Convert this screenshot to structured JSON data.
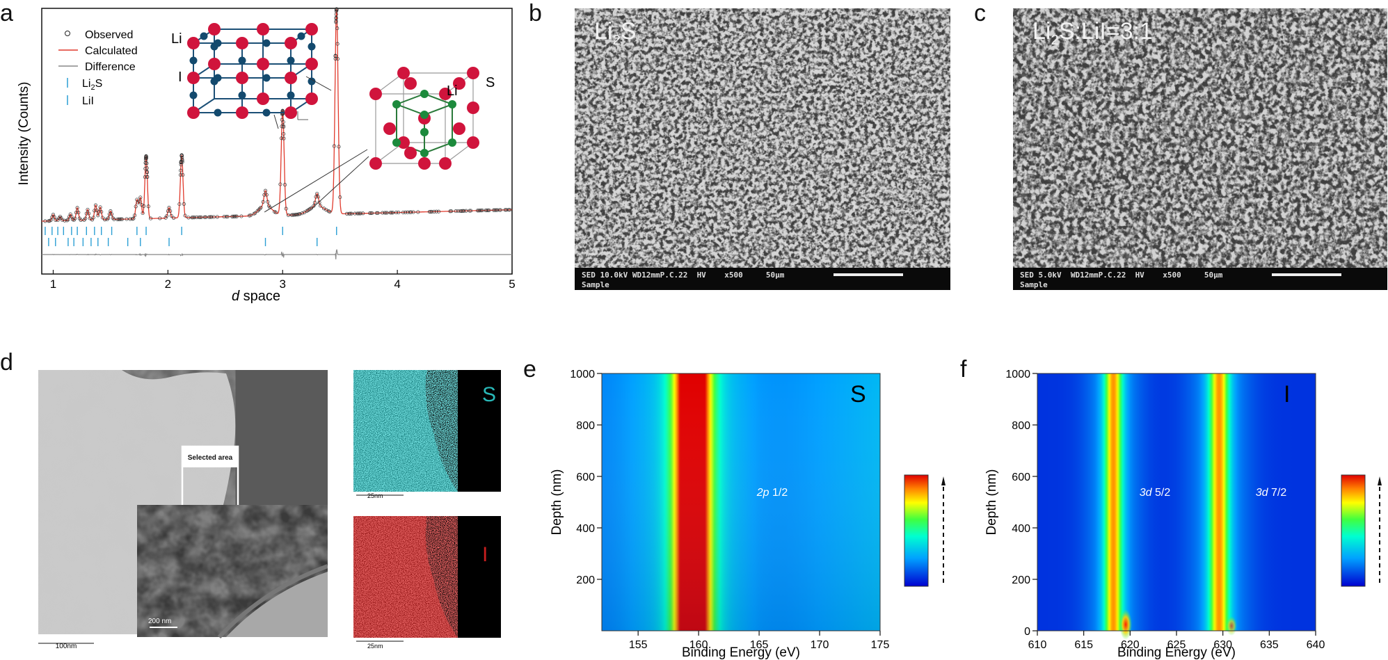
{
  "figure": {
    "panel_labels": [
      "a",
      "b",
      "c",
      "d",
      "e",
      "f"
    ]
  },
  "chart_data": [
    {
      "id": "a",
      "type": "line",
      "xlabel_italic": "d",
      "xlabel_rest": " space",
      "ylabel": "Intensity (Counts)",
      "xlim": [
        0.9,
        5
      ],
      "xticks": [
        1,
        2,
        3,
        4,
        5
      ],
      "legend": [
        "Observed",
        "Calculated",
        "Difference",
        "Li2S",
        "LiI"
      ],
      "legend_position": "top-left",
      "inset_labels": {
        "li_top": "Li",
        "i_left": "I",
        "li_right": "Li",
        "s_right": "S"
      },
      "peaks": [
        {
          "x": 1.0,
          "h": 0.03
        },
        {
          "x": 1.06,
          "h": 0.02
        },
        {
          "x": 1.15,
          "h": 0.03
        },
        {
          "x": 1.21,
          "h": 0.06
        },
        {
          "x": 1.3,
          "h": 0.05
        },
        {
          "x": 1.37,
          "h": 0.07
        },
        {
          "x": 1.41,
          "h": 0.06
        },
        {
          "x": 1.5,
          "h": 0.04
        },
        {
          "x": 1.73,
          "h": 0.09
        },
        {
          "x": 1.76,
          "h": 0.1
        },
        {
          "x": 1.81,
          "h": 0.3
        },
        {
          "x": 2.01,
          "h": 0.05
        },
        {
          "x": 2.12,
          "h": 0.3
        },
        {
          "x": 2.85,
          "h": 0.07
        },
        {
          "x": 3.0,
          "h": 0.5
        },
        {
          "x": 3.3,
          "h": 0.06
        },
        {
          "x": 3.47,
          "h": 0.98
        }
      ],
      "tick_positions_li2s": [
        0.93,
        0.99,
        1.04,
        1.09,
        1.16,
        1.21,
        1.29,
        1.36,
        1.42,
        1.51,
        1.73,
        1.81,
        2.12,
        3.0,
        3.47
      ],
      "tick_positions_lii": [
        0.96,
        1.02,
        1.13,
        1.18,
        1.26,
        1.33,
        1.39,
        1.48,
        1.65,
        1.76,
        2.01,
        2.85,
        3.3
      ]
    },
    {
      "id": "e",
      "type": "heatmap",
      "xlabel": "Binding Energy (eV)",
      "ylabel": "Depth (nm)",
      "xlim": [
        152,
        175
      ],
      "ylim": [
        0,
        1000
      ],
      "xticks": [
        155,
        160,
        165,
        170,
        175
      ],
      "yticks": [
        200,
        400,
        600,
        800,
        1000
      ],
      "element": "S",
      "annotation_italic": "2p",
      "annotation_rest": " 1/2",
      "bands": [
        {
          "center": 159.5,
          "width": 2.8,
          "intensity": "high"
        }
      ],
      "colorbar": "jet"
    },
    {
      "id": "f",
      "type": "heatmap",
      "xlabel": "Binding Energy (eV)",
      "ylabel": "Depth (nm)",
      "xlim": [
        610,
        640
      ],
      "ylim": [
        0,
        1000
      ],
      "xticks": [
        610,
        615,
        620,
        625,
        630,
        635,
        640
      ],
      "yticks": [
        0,
        200,
        400,
        600,
        800,
        1000
      ],
      "element": "I",
      "annotations": [
        {
          "italic": "3d",
          "rest": " 5/2"
        },
        {
          "italic": "3d",
          "rest": " 7/2"
        }
      ],
      "bands": [
        {
          "center": 618.2,
          "width": 1.8,
          "intensity": "mid"
        },
        {
          "center": 629.6,
          "width": 2.0,
          "intensity": "mid"
        }
      ],
      "colorbar": "jet"
    }
  ],
  "sem_b": {
    "title_main": "Li",
    "title_sub": "2",
    "title_end": "S",
    "bar_line1": "SED 10.0kV WD12mmP.C.22  HV    x500     50μm",
    "bar_line2": "Sample"
  },
  "sem_c": {
    "title_main": "Li",
    "title_sub": "2",
    "title_end": "S:LiI=3:1",
    "bar_line1": "SED 5.0kV  WD12mmP.C.22  HV    x500     50μm",
    "bar_line2": "Sample"
  },
  "tem_d": {
    "selected_area": "Selected area",
    "scale_main": "100nm",
    "scale_inset": "200 nm",
    "map_s_label": "S",
    "map_i_label": "I",
    "map_scale_s": "25nm",
    "map_scale_i": "25nm",
    "colors": {
      "s_map": "#29b8b8",
      "i_map": "#c81e1e"
    }
  }
}
